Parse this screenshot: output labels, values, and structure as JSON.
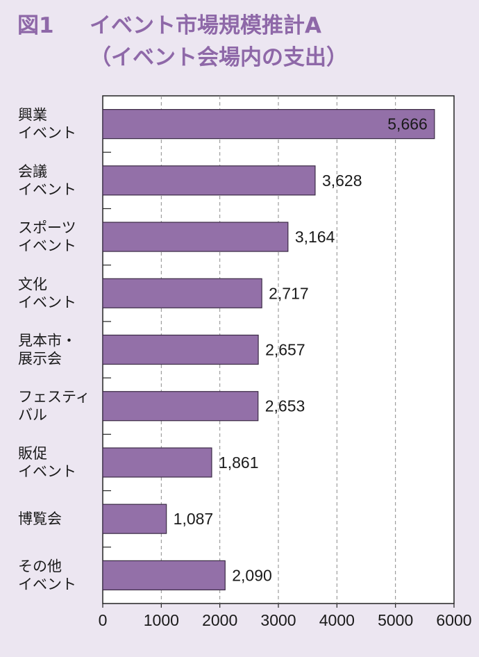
{
  "header": {
    "figure_no": "図1",
    "title": "イベント市場規模推計A",
    "subtitle": "（イベント会場内の支出）"
  },
  "colors": {
    "bar_fill": "#9370a8",
    "bar_stroke": "#3a2a44",
    "title": "#8e68a8",
    "background": "#ece6f1"
  },
  "chart_data": {
    "type": "bar",
    "orientation": "horizontal",
    "title": "イベント市場規模推計A",
    "subtitle": "（イベント会場内の支出）",
    "categories": [
      [
        "興業",
        "イベント"
      ],
      [
        "会議",
        "イベント"
      ],
      [
        "スポーツ",
        "イベント"
      ],
      [
        "文化",
        "イベント"
      ],
      [
        "見本市・",
        "展示会"
      ],
      [
        "フェスティ",
        "バル"
      ],
      [
        "販促",
        "イベント"
      ],
      [
        "博覧会"
      ],
      [
        "その他",
        "イベント"
      ]
    ],
    "values": [
      5666,
      3628,
      3164,
      2717,
      2657,
      2653,
      1861,
      1087,
      2090
    ],
    "value_labels": [
      "5,666",
      "3,628",
      "3,164",
      "2,717",
      "2,657",
      "2,653",
      "1,861",
      "1,087",
      "2,090"
    ],
    "xlim": [
      0,
      6000
    ],
    "xticks": [
      0,
      1000,
      2000,
      3000,
      4000,
      5000,
      6000
    ],
    "xtick_labels": [
      "0",
      "1000",
      "2000",
      "3000",
      "4000",
      "5000",
      "6000"
    ],
    "grid": "vertical dashed",
    "legend": "none",
    "xlabel": "",
    "ylabel": ""
  }
}
